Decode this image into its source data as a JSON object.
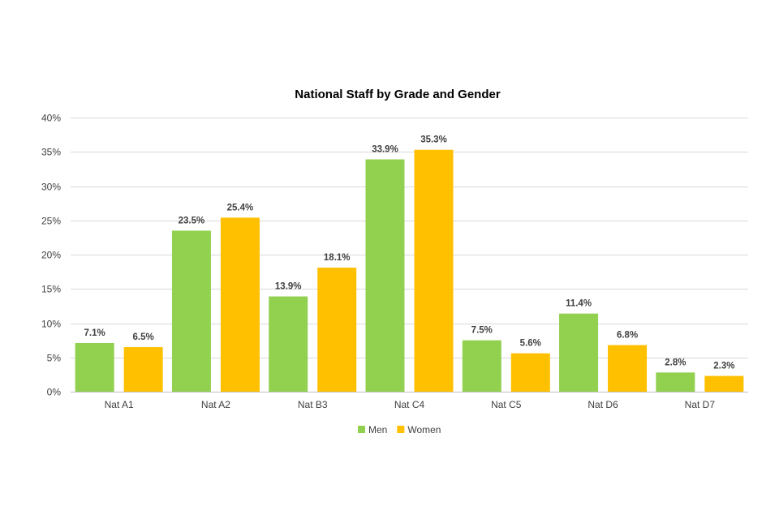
{
  "chart_data": {
    "type": "bar",
    "title": "National Staff by Grade and Gender",
    "xlabel": "",
    "ylabel": "",
    "categories": [
      "Nat A1",
      "Nat A2",
      "Nat B3",
      "Nat C4",
      "Nat C5",
      "Nat D6",
      "Nat D7"
    ],
    "series": [
      {
        "name": "Men",
        "color": "#92d050",
        "values": [
          7.1,
          23.5,
          13.9,
          33.9,
          7.5,
          11.4,
          2.8
        ],
        "value_labels": [
          "7.1%",
          "23.5%",
          "13.9%",
          "33.9%",
          "7.5%",
          "11.4%",
          "2.8%"
        ]
      },
      {
        "name": "Women",
        "color": "#ffc000",
        "values": [
          6.5,
          25.4,
          18.1,
          35.3,
          5.6,
          6.8,
          2.3
        ],
        "value_labels": [
          "6.5%",
          "25.4%",
          "18.1%",
          "35.3%",
          "5.6%",
          "6.8%",
          "2.3%"
        ]
      }
    ],
    "ylim": [
      0,
      40
    ],
    "y_ticks": [
      0,
      5,
      10,
      15,
      20,
      25,
      30,
      35,
      40
    ],
    "y_tick_labels": [
      "0%",
      "5%",
      "10%",
      "15%",
      "20%",
      "25%",
      "30%",
      "35%",
      "40%"
    ],
    "grid": true,
    "legend_position": "bottom"
  }
}
